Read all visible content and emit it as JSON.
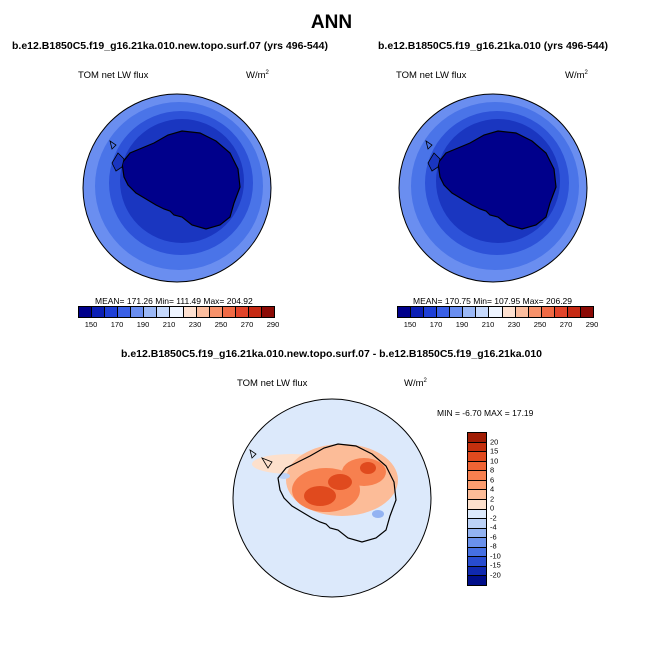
{
  "main_title": "ANN",
  "panels": [
    {
      "title": "b.e12.B1850C5.f19_g16.21ka.010.new.topo.surf.07 (yrs 496-544)",
      "variable": "TOM net LW flux",
      "units_base": "W/m",
      "units_exp": "2",
      "stats": "MEAN= 171.26  Min= 111.49  Max= 204.92"
    },
    {
      "title": "b.e12.B1850C5.f19_g16.21ka.010 (yrs 496-544)",
      "variable": "TOM net LW flux",
      "units_base": "W/m",
      "units_exp": "2",
      "stats": "MEAN= 170.75  Min= 107.95  Max= 206.29"
    },
    {
      "title": "b.e12.B1850C5.f19_g16.21ka.010.new.topo.surf.07 - b.e12.B1850C5.f19_g16.21ka.010",
      "variable": "TOM net LW flux",
      "units_base": "W/m",
      "units_exp": "2",
      "stats": "MIN =  -6.70 MAX =  17.19"
    }
  ],
  "colorbar_abs": {
    "ticks": [
      "150",
      "170",
      "190",
      "210",
      "230",
      "250",
      "270",
      "290"
    ],
    "colors": [
      "#00008b",
      "#0b1fb5",
      "#1e3fd6",
      "#3a60e6",
      "#6a8ef0",
      "#9bb8f6",
      "#c5d8fb",
      "#eef4ff",
      "#fde0d0",
      "#fbbd9e",
      "#f7926b",
      "#f06a45",
      "#e2442a",
      "#c52a14",
      "#8b0a05"
    ]
  },
  "colorbar_diff": {
    "ticks": [
      "20",
      "15",
      "10",
      "8",
      "6",
      "4",
      "2",
      "0",
      "-2",
      "-4",
      "-6",
      "-8",
      "-10",
      "-15",
      "-20"
    ],
    "colors": [
      "#a01c04",
      "#c4300e",
      "#e04a1e",
      "#f06434",
      "#f7804f",
      "#fb9d70",
      "#fcbc98",
      "#fde0cc",
      "#dce9fb",
      "#bcd2f7",
      "#93b3f2",
      "#6a91ec",
      "#4670e2",
      "#284cd0",
      "#1029b0",
      "#000e8a"
    ]
  },
  "map_colors": {
    "ocean_outer": "#6a8ef0",
    "ocean_band1": "#4a74e8",
    "ocean_band2": "#2d52d8",
    "ocean_band3": "#1a36c0",
    "land": "#00008b",
    "diff_background": "#dce9fb",
    "diff_warm": "#f7804f",
    "diff_hot": "#e04a1e",
    "diff_light": "#fcbc98"
  }
}
